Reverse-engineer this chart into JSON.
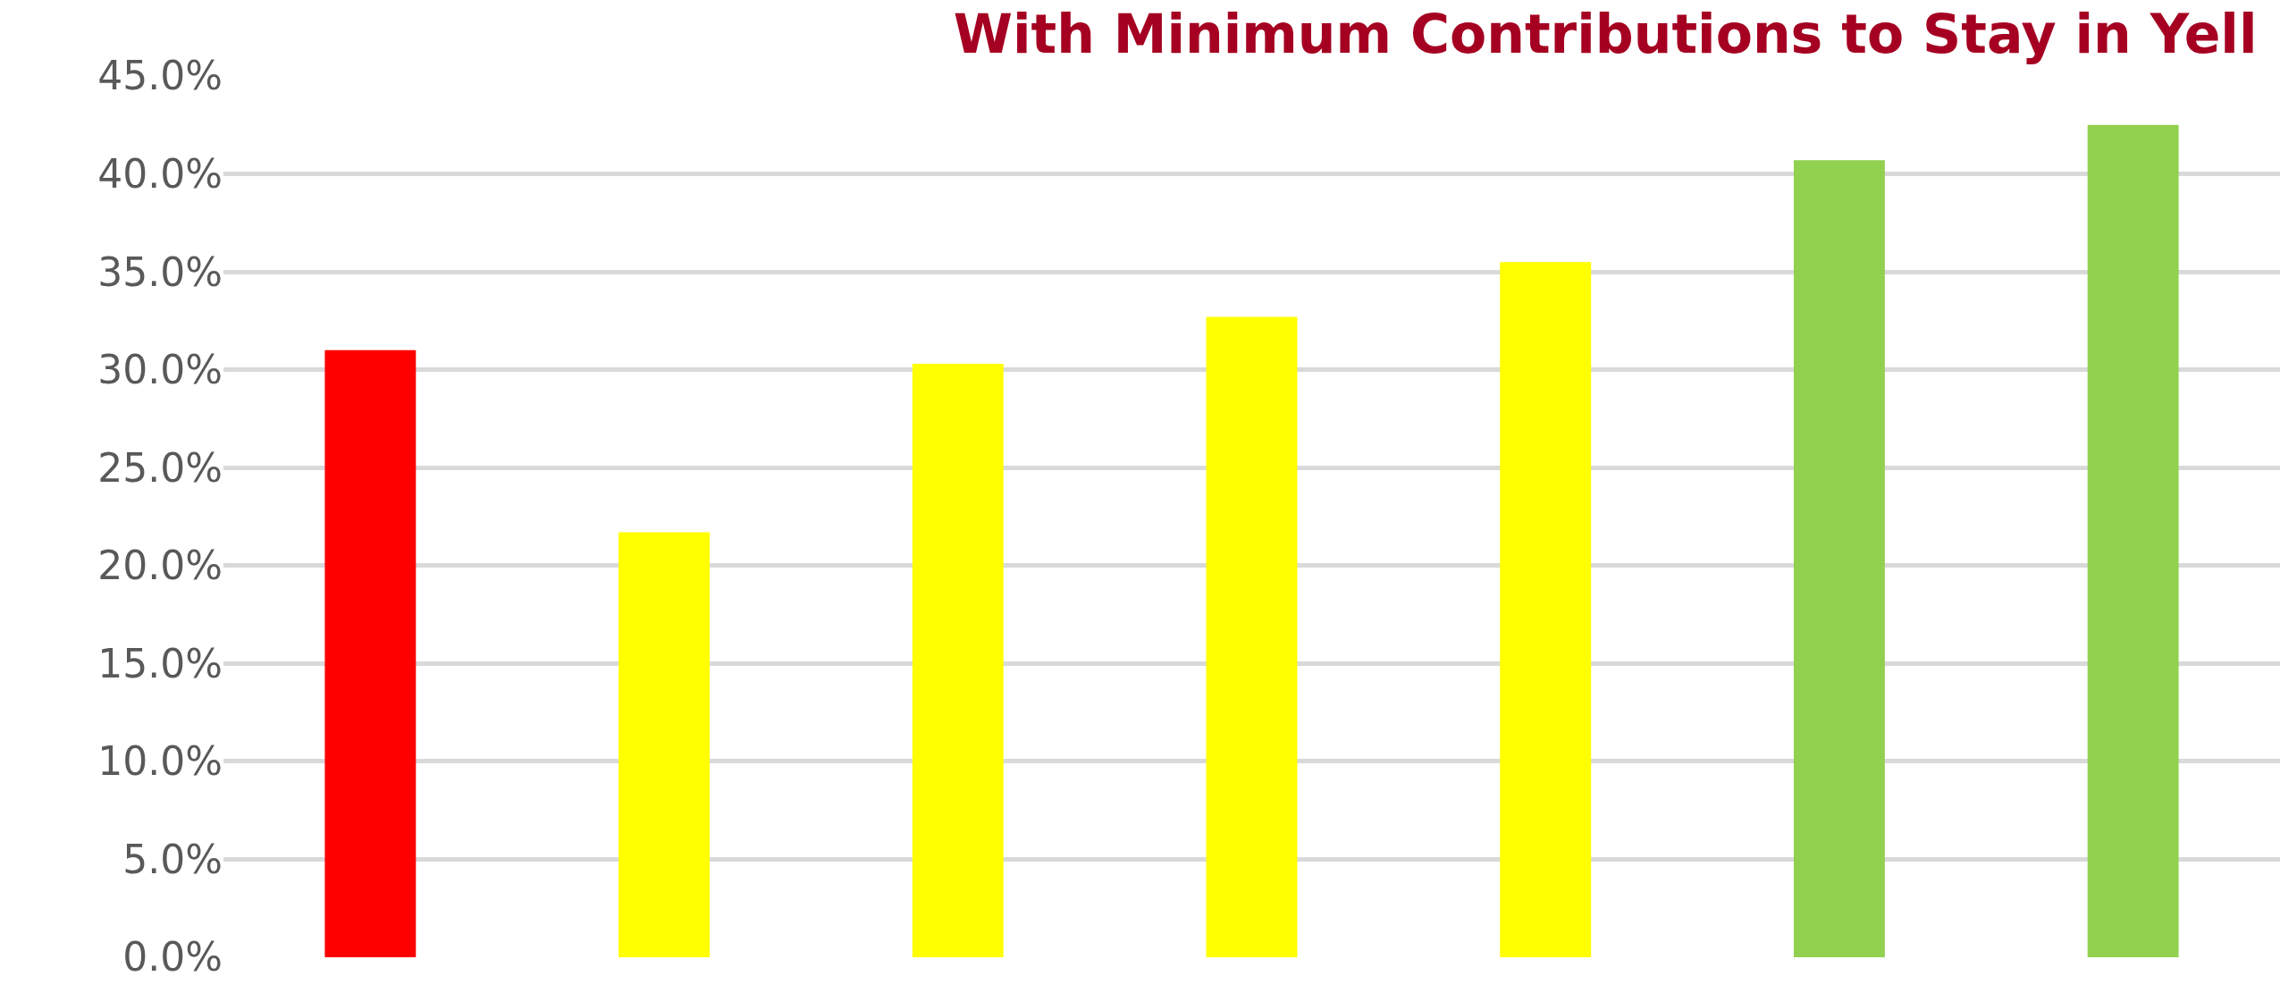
{
  "chart_data": {
    "type": "bar",
    "title": "With Minimum Contributions to Stay in Yell",
    "categories": [
      null,
      null,
      null,
      null,
      null,
      null,
      null
    ],
    "values": [
      31.0,
      21.7,
      30.3,
      32.7,
      35.5,
      40.7,
      42.5
    ],
    "colors": [
      "#ff0000",
      "#ffff00",
      "#ffff00",
      "#ffff00",
      "#ffff00",
      "#92d050",
      "#92d050"
    ],
    "ylim": [
      0,
      45
    ],
    "yticks": [
      {
        "value": 0,
        "label": "0.0%"
      },
      {
        "value": 5,
        "label": "5.0%"
      },
      {
        "value": 10,
        "label": "10.0%"
      },
      {
        "value": 15,
        "label": "15.0%"
      },
      {
        "value": 20,
        "label": "20.0%"
      },
      {
        "value": 25,
        "label": "25.0%"
      },
      {
        "value": 30,
        "label": "30.0%"
      },
      {
        "value": 35,
        "label": "35.0%"
      },
      {
        "value": 40,
        "label": "40.0%"
      },
      {
        "value": 45,
        "label": "45.0%"
      }
    ],
    "grid": "y"
  }
}
